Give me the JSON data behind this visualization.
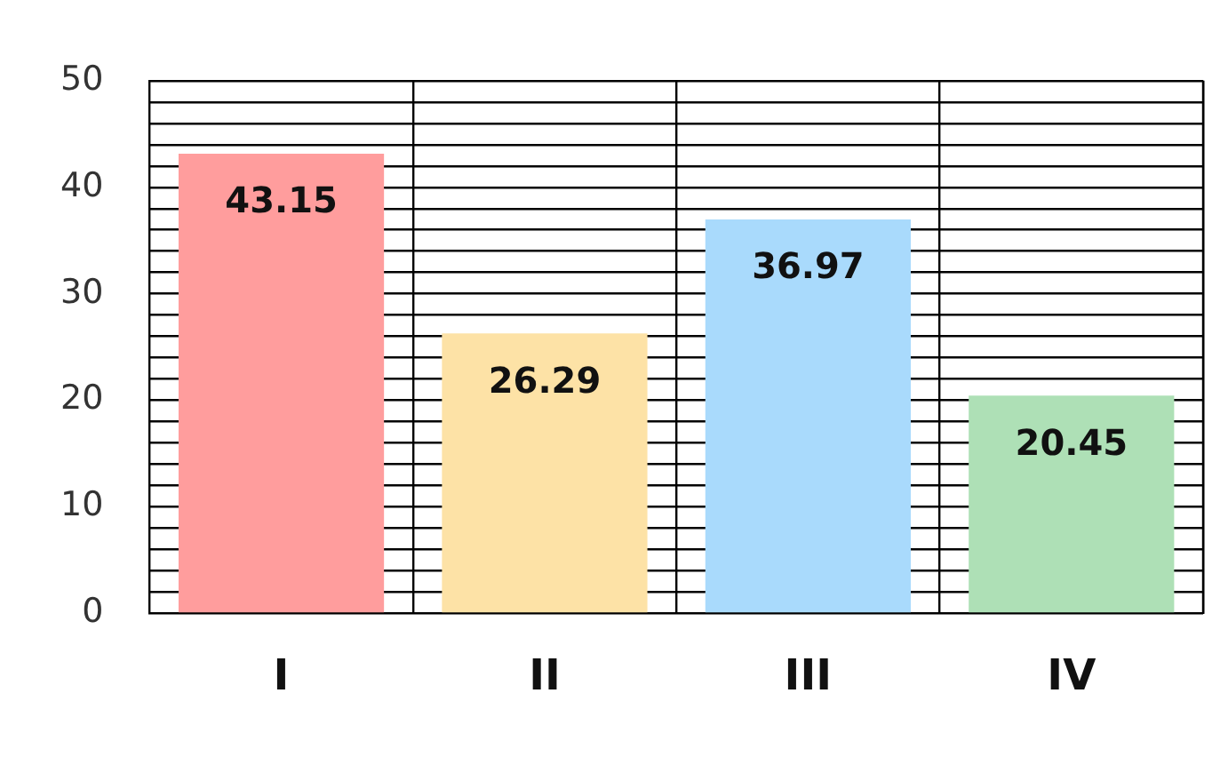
{
  "chart_data": {
    "type": "bar",
    "categories": [
      "I",
      "II",
      "III",
      "IV"
    ],
    "values": [
      43.15,
      26.29,
      36.97,
      20.45
    ],
    "colors": [
      "#ff9d9d",
      "#fde2a6",
      "#a9dafc",
      "#aee0b6"
    ],
    "ylim": [
      0,
      50
    ],
    "yticks": [
      0,
      {
        "value": 2,
        "label": null
      },
      {
        "value": 4,
        "label": null
      },
      {
        "value": 6,
        "label": null
      },
      {
        "value": 8,
        "label": null
      },
      10,
      {
        "value": 12,
        "label": null
      },
      {
        "value": 14,
        "label": null
      },
      {
        "value": 16,
        "label": null
      },
      {
        "value": 18,
        "label": null
      },
      20,
      {
        "value": 22,
        "label": null
      },
      {
        "value": 24,
        "label": null
      },
      {
        "value": 26,
        "label": null
      },
      {
        "value": 28,
        "label": null
      },
      30,
      {
        "value": 32,
        "label": null
      },
      {
        "value": 34,
        "label": null
      },
      {
        "value": 36,
        "label": null
      },
      {
        "value": 38,
        "label": null
      },
      40,
      {
        "value": 42,
        "label": null
      },
      {
        "value": 44,
        "label": null
      },
      {
        "value": 46,
        "label": null
      },
      {
        "value": 48,
        "label": null
      },
      50
    ],
    "grid": true,
    "data_labels": true
  }
}
